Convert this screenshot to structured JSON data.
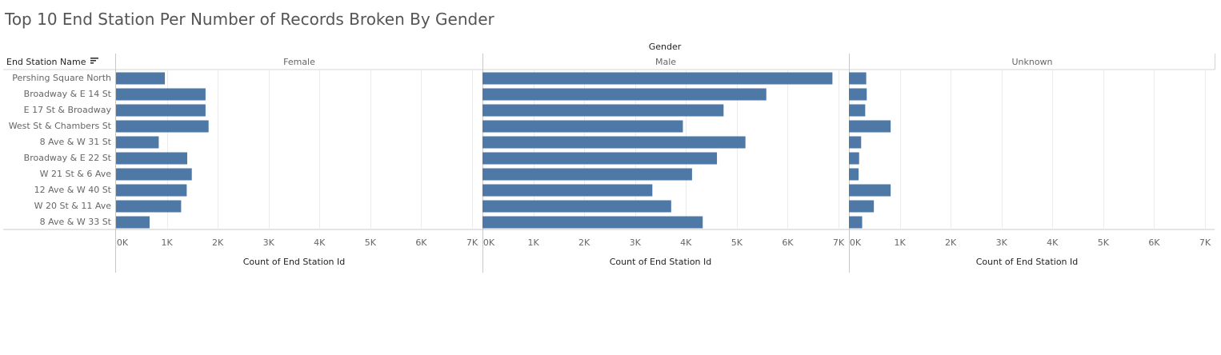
{
  "title": "Top 10 End Station Per Number of Records Broken By Gender",
  "chart_data": {
    "type": "bar",
    "orientation": "horizontal",
    "title": "Top 10 End Station Per Number of Records Broken By Gender",
    "column_header": "Gender",
    "row_header": "End Station Name",
    "xlabel": "Count of End Station Id",
    "xlim": [
      0,
      7000
    ],
    "xticks": [
      "0K",
      "1K",
      "2K",
      "3K",
      "4K",
      "5K",
      "6K",
      "7K"
    ],
    "grid": true,
    "bar_color": "#4e79a7",
    "categories": [
      "Pershing Square North",
      "Broadway & E 14 St",
      "E 17 St & Broadway",
      "West St & Chambers St",
      "8 Ave & W 31 St",
      "Broadway & E 22 St",
      "W 21 St & 6 Ave",
      "12 Ave & W 40 St",
      "W 20 St & 11 Ave",
      "8 Ave & W 33 St"
    ],
    "panels": [
      {
        "name": "Female",
        "values": [
          960,
          1760,
          1760,
          1820,
          840,
          1400,
          1490,
          1390,
          1280,
          660
        ]
      },
      {
        "name": "Male",
        "values": [
          6880,
          5580,
          4740,
          3940,
          5170,
          4610,
          4120,
          3340,
          3710,
          4330
        ]
      },
      {
        "name": "Unknown",
        "values": [
          340,
          350,
          320,
          820,
          240,
          200,
          190,
          820,
          490,
          260
        ]
      }
    ]
  }
}
